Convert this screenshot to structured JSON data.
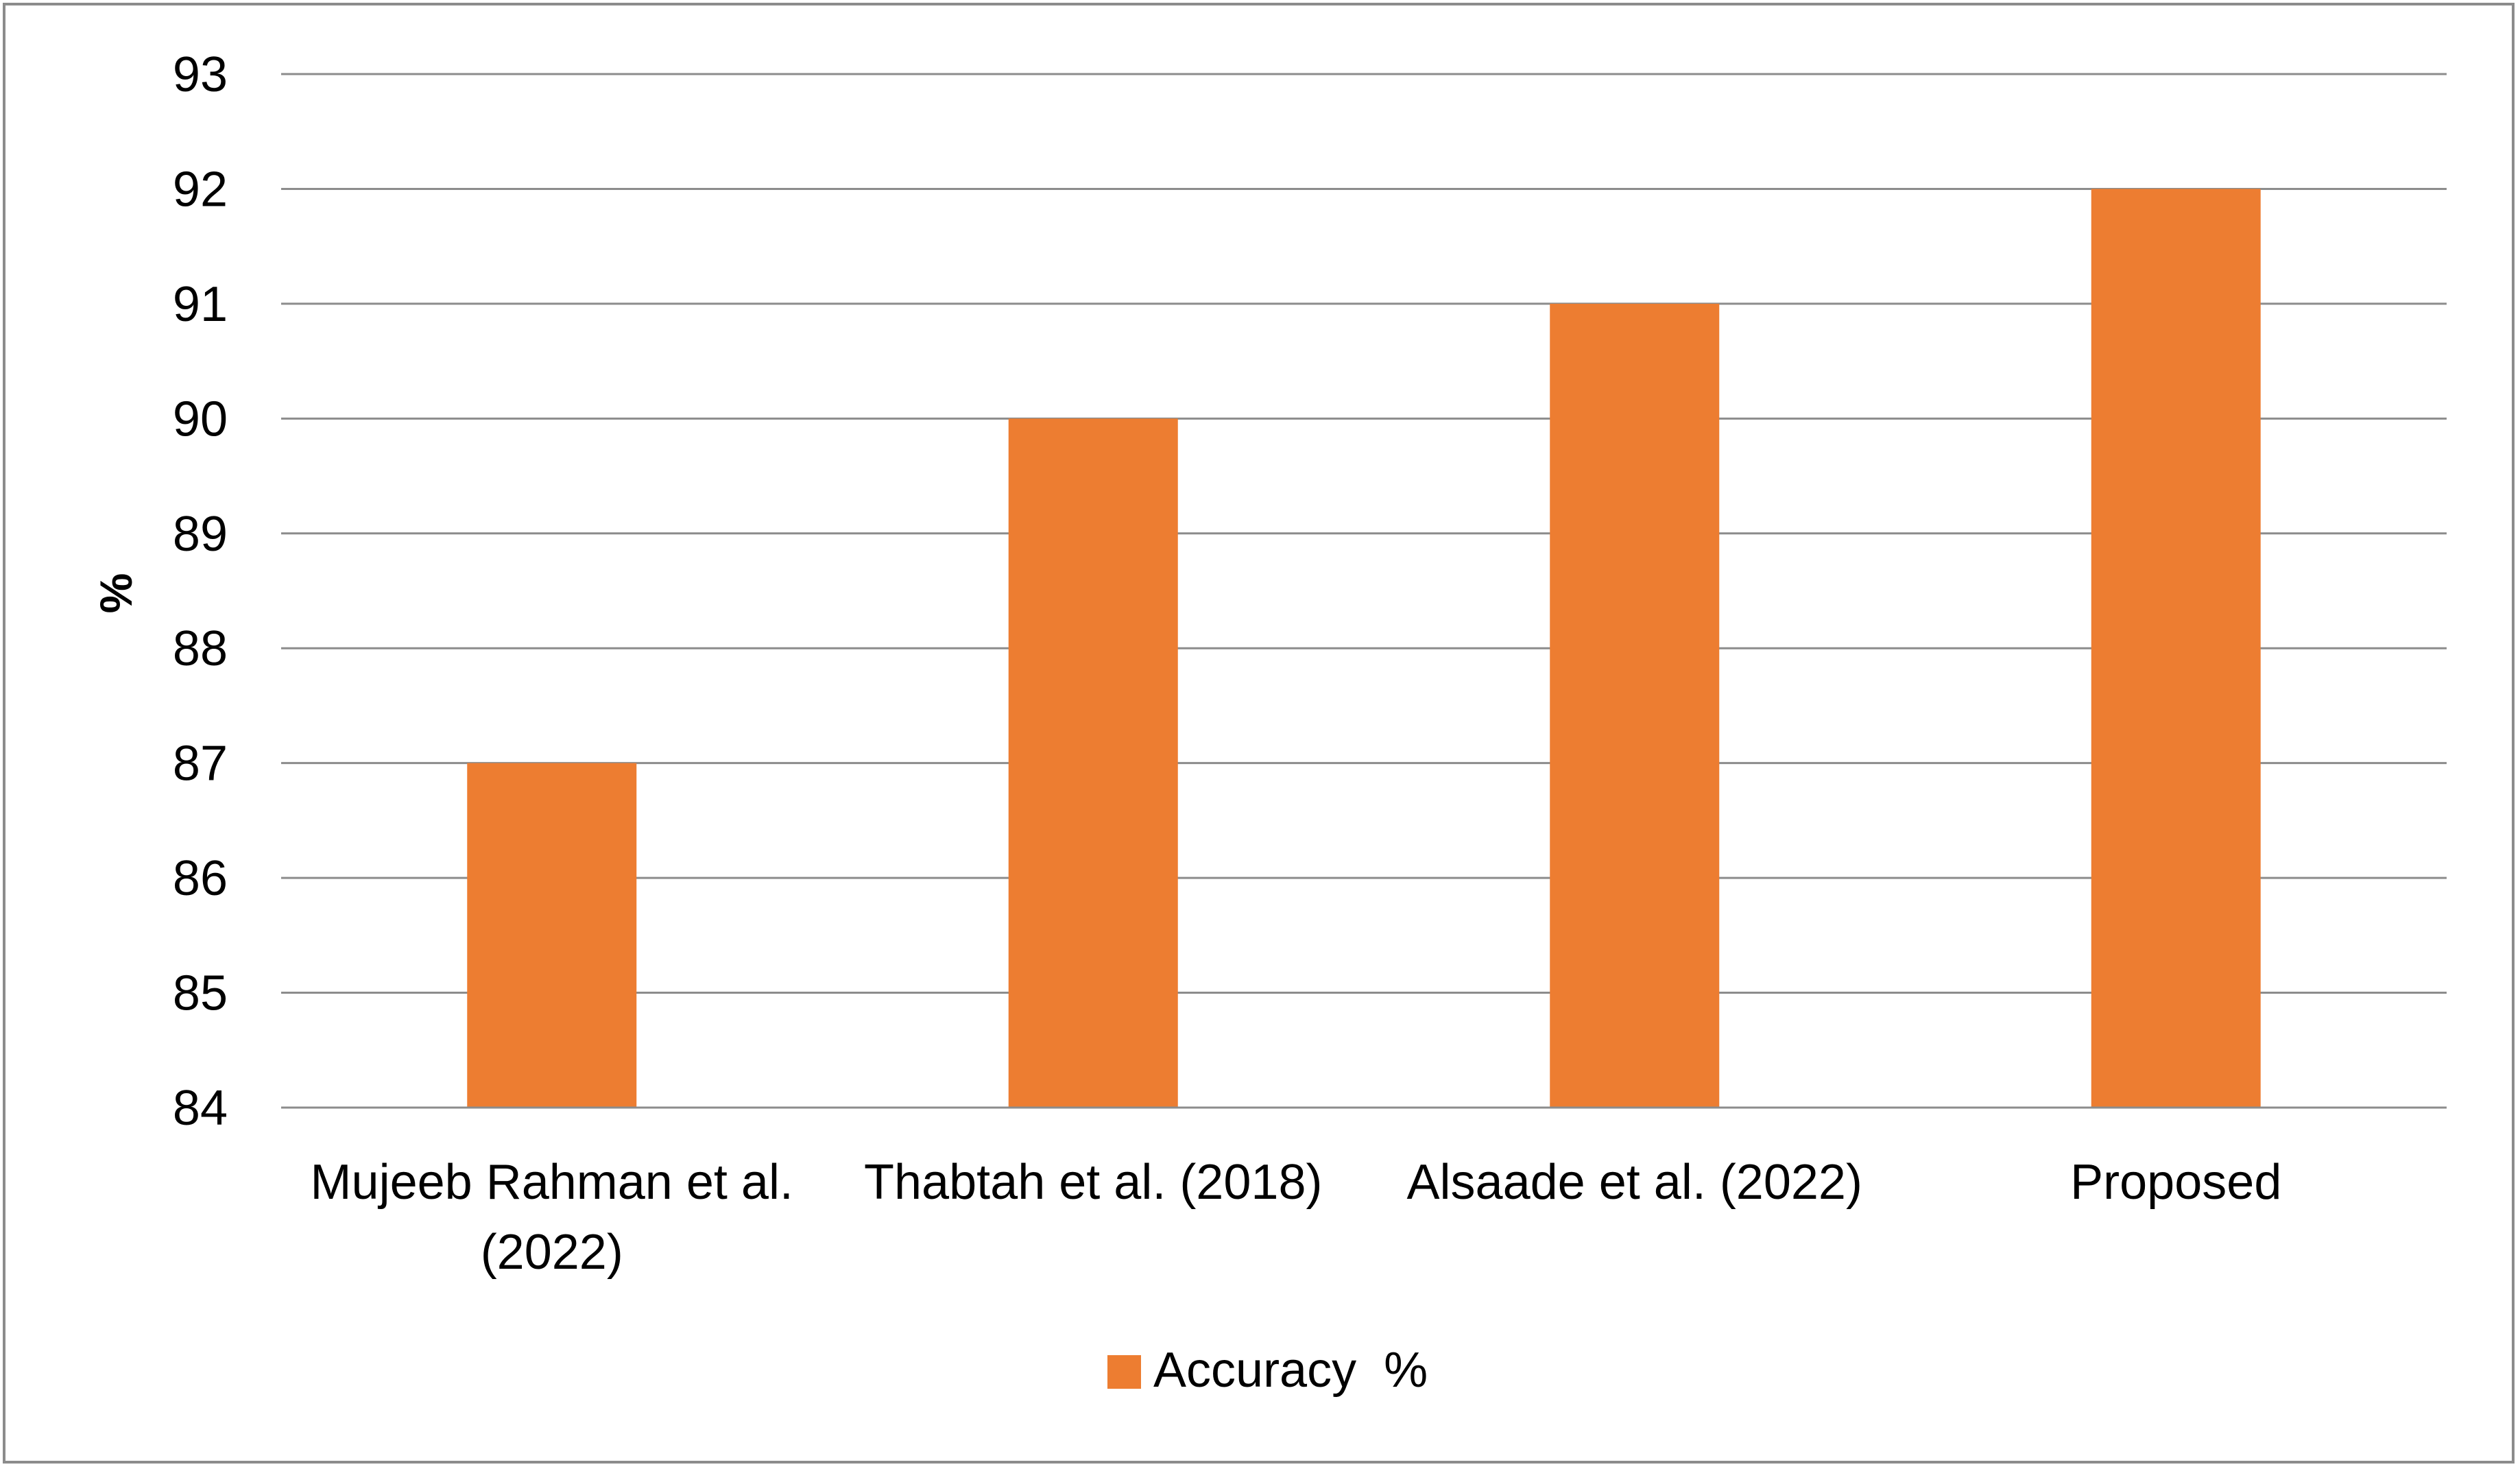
{
  "chart_data": {
    "type": "bar",
    "title": "",
    "xlabel": "",
    "ylabel": "%",
    "ylim": [
      84,
      93
    ],
    "yticks": [
      84,
      85,
      86,
      87,
      88,
      89,
      90,
      91,
      92,
      93
    ],
    "grid": true,
    "legend_position": "bottom",
    "categories": [
      [
        "Mujeeb Rahman et al.",
        "(2022)"
      ],
      [
        "Thabtah et al. (2018)"
      ],
      [
        "Alsaade et al. (2022)"
      ],
      [
        "Proposed"
      ]
    ],
    "series": [
      {
        "name": "Accuracy  %",
        "color": "#ED7D31",
        "values": [
          87,
          90,
          91,
          92
        ]
      }
    ]
  }
}
